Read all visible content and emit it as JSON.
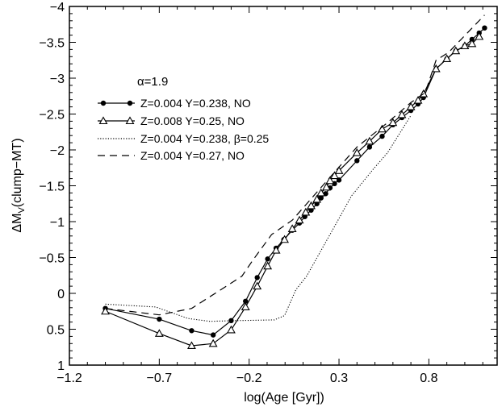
{
  "chart_data": {
    "type": "line",
    "title": "",
    "xlabel": "log(Age [Gyr])",
    "ylabel_main": "ΔM",
    "ylabel_sub": "V",
    "ylabel_rest": "(clump−MT)",
    "xlim": [
      -1.2,
      1.18
    ],
    "ylim": [
      1,
      -4
    ],
    "y_inverted": true,
    "x_ticks": [
      -1.2,
      -0.7,
      -0.2,
      0.3,
      0.8
    ],
    "x_tick_labels": [
      "−1.2",
      "−0.7",
      "−0.2",
      "0.3",
      "0.8"
    ],
    "y_ticks": [
      -4,
      -3.5,
      -3,
      -2.5,
      -2,
      -1.5,
      -1,
      -0.5,
      0,
      0.5,
      1
    ],
    "y_tick_labels": [
      "−4",
      "−3.5",
      "−3",
      "−2.5",
      "−2",
      "−1.5",
      "−1",
      "−0.5",
      "0",
      "0.5",
      "1"
    ],
    "grid": false,
    "annotation": "α=1.9",
    "legend_placement": "upper-left",
    "series": [
      {
        "name": "Z=0.004 Y=0.238, NO",
        "style": "solid",
        "marker": "filled-circle",
        "x": [
          -1.0,
          -0.7,
          -0.52,
          -0.4,
          -0.3,
          -0.22,
          -0.155,
          -0.097,
          -0.05,
          -0.007,
          0.04,
          0.08,
          0.11,
          0.145,
          0.177,
          0.2,
          0.226,
          0.25,
          0.275,
          0.3,
          0.4,
          0.47,
          0.54,
          0.6,
          0.65,
          0.7,
          0.74,
          0.77,
          0.84,
          0.9,
          0.95,
          1.0,
          1.04,
          1.08,
          1.11
        ],
        "y": [
          0.21,
          0.36,
          0.52,
          0.58,
          0.38,
          0.11,
          -0.22,
          -0.48,
          -0.63,
          -0.75,
          -0.88,
          -0.98,
          -1.07,
          -1.16,
          -1.25,
          -1.33,
          -1.39,
          -1.47,
          -1.53,
          -1.58,
          -1.85,
          -2.04,
          -2.19,
          -2.35,
          -2.45,
          -2.55,
          -2.64,
          -2.73,
          -3.13,
          -3.27,
          -3.38,
          -3.45,
          -3.54,
          -3.63,
          -3.7
        ]
      },
      {
        "name": "Z=0.008 Y=0.25, NO",
        "style": "solid",
        "marker": "open-triangle",
        "x": [
          -1.0,
          -0.7,
          -0.52,
          -0.4,
          -0.3,
          -0.22,
          -0.155,
          -0.097,
          -0.05,
          -0.003,
          0.04,
          0.08,
          0.115,
          0.145,
          0.177,
          0.2,
          0.23,
          0.25,
          0.275,
          0.3,
          0.4,
          0.47,
          0.54,
          0.6,
          0.65,
          0.7,
          0.74,
          0.77,
          0.84,
          0.9,
          0.95,
          1.0,
          1.04,
          1.08
        ],
        "y": [
          0.25,
          0.56,
          0.73,
          0.7,
          0.51,
          0.19,
          -0.1,
          -0.38,
          -0.6,
          -0.75,
          -0.9,
          -1.02,
          -1.13,
          -1.22,
          -1.31,
          -1.4,
          -1.48,
          -1.57,
          -1.64,
          -1.71,
          -1.96,
          -2.12,
          -2.29,
          -2.38,
          -2.49,
          -2.6,
          -2.69,
          -2.78,
          -3.13,
          -3.27,
          -3.38,
          -3.45,
          -3.48,
          -3.58
        ]
      },
      {
        "name": "Z=0.004 Y=0.238, β=0.25",
        "style": "dotted",
        "marker": "none",
        "x": [
          -1.0,
          -0.72,
          -0.54,
          -0.42,
          -0.27,
          -0.06,
          -0.003,
          0.06,
          0.12,
          0.27,
          0.37,
          0.49,
          0.57,
          0.63,
          0.7
        ],
        "y": [
          0.15,
          0.19,
          0.35,
          0.39,
          0.38,
          0.37,
          0.31,
          -0.05,
          -0.24,
          -0.91,
          -1.36,
          -1.73,
          -1.96,
          -2.2,
          -2.48
        ]
      },
      {
        "name": "Z=0.004 Y=0.27, NO",
        "style": "dashed",
        "marker": "none",
        "x": [
          -1.0,
          -0.7,
          -0.52,
          -0.24,
          -0.18,
          -0.075,
          0.04,
          0.3,
          0.4,
          0.57,
          0.7,
          0.78,
          0.84,
          0.91,
          1.11
        ],
        "y": [
          0.21,
          0.3,
          0.21,
          -0.24,
          -0.46,
          -0.82,
          -1.02,
          -1.76,
          -2.04,
          -2.38,
          -2.66,
          -2.8,
          -3.25,
          -3.36,
          -3.88
        ]
      }
    ]
  }
}
